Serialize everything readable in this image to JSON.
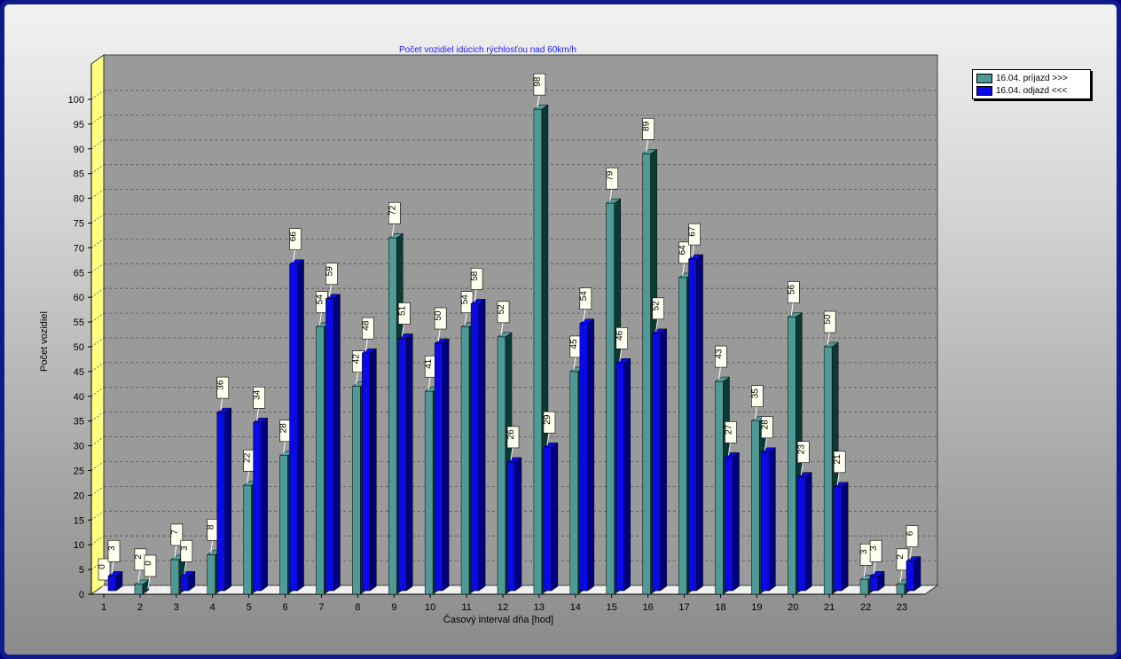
{
  "chart_data": {
    "type": "bar",
    "title": "Počet vozidiel idúcich rýchlosťou nad 60km/h",
    "xlabel": "Časový interval dňa [hod]",
    "ylabel": "Počet vozidiel",
    "ylim": [
      0,
      100
    ],
    "yticks": [
      "0",
      "5",
      "10",
      "15",
      "20",
      "25",
      "30",
      "35",
      "40",
      "45",
      "50",
      "55",
      "60",
      "65",
      "70",
      "75",
      "80",
      "85",
      "90",
      "95",
      "100"
    ],
    "grid": true,
    "legend_position": "top-right",
    "categories": [
      "1",
      "2",
      "3",
      "4",
      "5",
      "6",
      "7",
      "8",
      "9",
      "10",
      "11",
      "12",
      "13",
      "14",
      "15",
      "16",
      "17",
      "18",
      "19",
      "20",
      "21",
      "22",
      "23"
    ],
    "series": [
      {
        "name": "16.04. príjazd >>>",
        "color": "#4f9a96",
        "side_color": "#0a3a36",
        "values": [
          0,
          2,
          7,
          8,
          22,
          28,
          54,
          42,
          72,
          41,
          54,
          52,
          98,
          45,
          79,
          89,
          64,
          43,
          35,
          56,
          50,
          3,
          2
        ]
      },
      {
        "name": "16.04. odjazd <<<",
        "color": "#0a0ae6",
        "side_color": "#00007a",
        "values": [
          3,
          0,
          3,
          36,
          34,
          66,
          59,
          48,
          51,
          50,
          58,
          26,
          29,
          54,
          46,
          52,
          67,
          27,
          28,
          23,
          21,
          3,
          6
        ]
      }
    ]
  }
}
